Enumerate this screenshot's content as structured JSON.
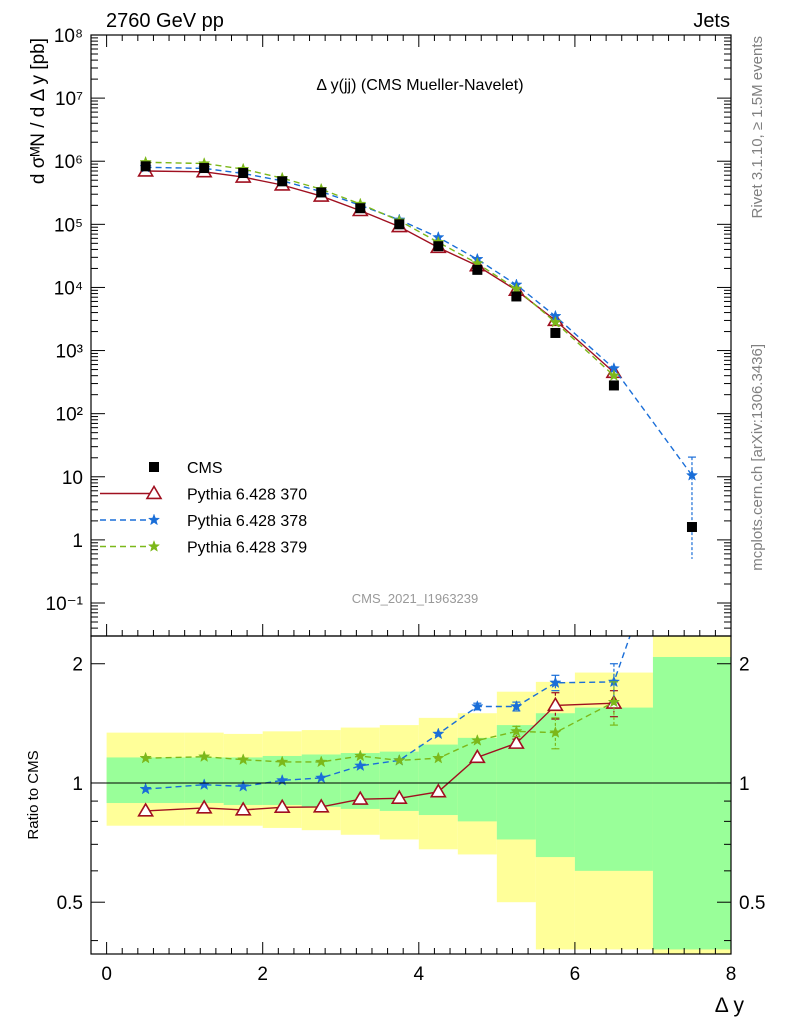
{
  "header": {
    "left": "2760 GeV pp",
    "right": "Jets"
  },
  "side_labels": {
    "rivet": "Rivet 3.1.10, ≥ 1.5M events",
    "mcplots": "mcplots.cern.ch [arXiv:1306.3436]"
  },
  "watermark": "CMS_2021_I1963239",
  "chart_data": {
    "type": "scatter",
    "title": "Δ y(jj) (CMS Mueller-Navelet)",
    "ylabel": "d σᴹN / d Δ y [pb]",
    "ratio_ylabel": "Ratio to CMS",
    "xlabel": "Δ y",
    "xlim": [
      -0.2,
      8.0
    ],
    "main_ylim": [
      0.03,
      100000000
    ],
    "main_yscale": "log",
    "ratio_ylim": [
      0.37,
      2.35
    ],
    "ratio_yscale": "log",
    "x_ticks": [
      0,
      2,
      4,
      6,
      8
    ],
    "main_yticks": [
      {
        "v": 0.1,
        "l": "10⁻¹"
      },
      {
        "v": 1,
        "l": "1"
      },
      {
        "v": 10,
        "l": "10"
      },
      {
        "v": 100,
        "l": "10²"
      },
      {
        "v": 1000,
        "l": "10³"
      },
      {
        "v": 10000,
        "l": "10⁴"
      },
      {
        "v": 100000,
        "l": "10⁵"
      },
      {
        "v": 1000000,
        "l": "10⁶"
      },
      {
        "v": 10000000,
        "l": "10⁷"
      },
      {
        "v": 100000000,
        "l": "10⁸"
      }
    ],
    "ratio_yticks": [
      {
        "v": 0.5,
        "l": "0.5"
      },
      {
        "v": 1,
        "l": "1"
      },
      {
        "v": 2,
        "l": "2"
      }
    ],
    "bins": [
      {
        "lo": 0.0,
        "hi": 1.0
      },
      {
        "lo": 1.0,
        "hi": 1.5
      },
      {
        "lo": 1.5,
        "hi": 2.0
      },
      {
        "lo": 2.0,
        "hi": 2.5
      },
      {
        "lo": 2.5,
        "hi": 3.0
      },
      {
        "lo": 3.0,
        "hi": 3.5
      },
      {
        "lo": 3.5,
        "hi": 4.0
      },
      {
        "lo": 4.0,
        "hi": 4.5
      },
      {
        "lo": 4.5,
        "hi": 5.0
      },
      {
        "lo": 5.0,
        "hi": 5.5
      },
      {
        "lo": 5.5,
        "hi": 6.0
      },
      {
        "lo": 6.0,
        "hi": 7.0
      },
      {
        "lo": 7.0,
        "hi": 8.0
      }
    ],
    "data": {
      "name": "CMS",
      "x": [
        0.5,
        1.25,
        1.75,
        2.25,
        2.75,
        3.25,
        3.75,
        4.25,
        4.75,
        5.25,
        5.75,
        6.5,
        7.5
      ],
      "y": [
        830000,
        780000,
        650000,
        480000,
        320000,
        180000,
        100000,
        45000,
        19000,
        7200,
        1900,
        280,
        1.6
      ]
    },
    "band_yellow": [
      [
        0.78,
        1.34
      ],
      [
        0.78,
        1.34
      ],
      [
        0.78,
        1.33
      ],
      [
        0.77,
        1.35
      ],
      [
        0.76,
        1.36
      ],
      [
        0.74,
        1.38
      ],
      [
        0.72,
        1.4
      ],
      [
        0.68,
        1.46
      ],
      [
        0.66,
        1.5
      ],
      [
        0.5,
        1.7
      ],
      [
        0.38,
        1.8
      ],
      [
        0.38,
        1.9
      ],
      [
        0.37,
        2.35
      ]
    ],
    "band_green": [
      [
        0.89,
        1.16
      ],
      [
        0.89,
        1.16
      ],
      [
        0.88,
        1.16
      ],
      [
        0.88,
        1.17
      ],
      [
        0.87,
        1.18
      ],
      [
        0.86,
        1.19
      ],
      [
        0.85,
        1.2
      ],
      [
        0.83,
        1.25
      ],
      [
        0.8,
        1.3
      ],
      [
        0.72,
        1.4
      ],
      [
        0.65,
        1.5
      ],
      [
        0.6,
        1.55
      ],
      [
        0.38,
        2.08
      ]
    ],
    "series": [
      {
        "name": "Pythia 6.428 370",
        "color": "#a01020",
        "marker": "triangle-open",
        "dash": "solid",
        "x": [
          0.5,
          1.25,
          1.75,
          2.25,
          2.75,
          3.25,
          3.75,
          4.25,
          4.75,
          5.25,
          5.75,
          6.5
        ],
        "y": [
          700000,
          680000,
          560000,
          420000,
          280000,
          165000,
          92000,
          43000,
          22000,
          9000,
          3000,
          450
        ],
        "ratio": [
          0.85,
          0.865,
          0.855,
          0.868,
          0.87,
          0.91,
          0.915,
          0.95,
          1.16,
          1.26,
          1.57,
          1.59
        ],
        "ratio_err": [
          0,
          0,
          0,
          0,
          0,
          0,
          0,
          0,
          0,
          0.03,
          0.12,
          0.12
        ]
      },
      {
        "name": "Pythia 6.428 378",
        "color": "#1a6ed8",
        "marker": "star",
        "dash": "6,4",
        "x": [
          0.5,
          1.25,
          1.75,
          2.25,
          2.75,
          3.25,
          3.75,
          4.25,
          4.75,
          5.25,
          5.75,
          6.5,
          7.5
        ],
        "y": [
          800000,
          770000,
          640000,
          490000,
          330000,
          200000,
          118000,
          62000,
          28000,
          11000,
          3500,
          520,
          10.5
        ],
        "y_err": [
          0,
          0,
          0,
          0,
          0,
          0,
          0,
          0,
          0,
          0,
          0,
          0,
          10
        ],
        "ratio": [
          0.965,
          0.99,
          0.98,
          1.015,
          1.03,
          1.105,
          1.14,
          1.33,
          1.56,
          1.56,
          1.79,
          1.8
        ],
        "ratio_err": [
          0,
          0,
          0,
          0,
          0,
          0,
          0,
          0,
          0.03,
          0.04,
          0.08,
          0.2
        ]
      },
      {
        "name": "Pythia 6.428 379",
        "color": "#7cb81a",
        "marker": "star",
        "dash": "6,4",
        "x": [
          0.5,
          1.25,
          1.75,
          2.25,
          2.75,
          3.25,
          3.75,
          4.25,
          4.75,
          5.25,
          5.75,
          6.5
        ],
        "y": [
          960000,
          920000,
          750000,
          540000,
          360000,
          210000,
          114000,
          52000,
          24000,
          9500,
          2800,
          400
        ],
        "ratio": [
          1.155,
          1.165,
          1.145,
          1.13,
          1.13,
          1.17,
          1.14,
          1.155,
          1.28,
          1.35,
          1.34,
          1.6
        ],
        "ratio_err": [
          0,
          0,
          0,
          0,
          0,
          0,
          0,
          0,
          0,
          0.04,
          0.12,
          0.2
        ]
      }
    ],
    "legend": {
      "placement": "left"
    }
  }
}
